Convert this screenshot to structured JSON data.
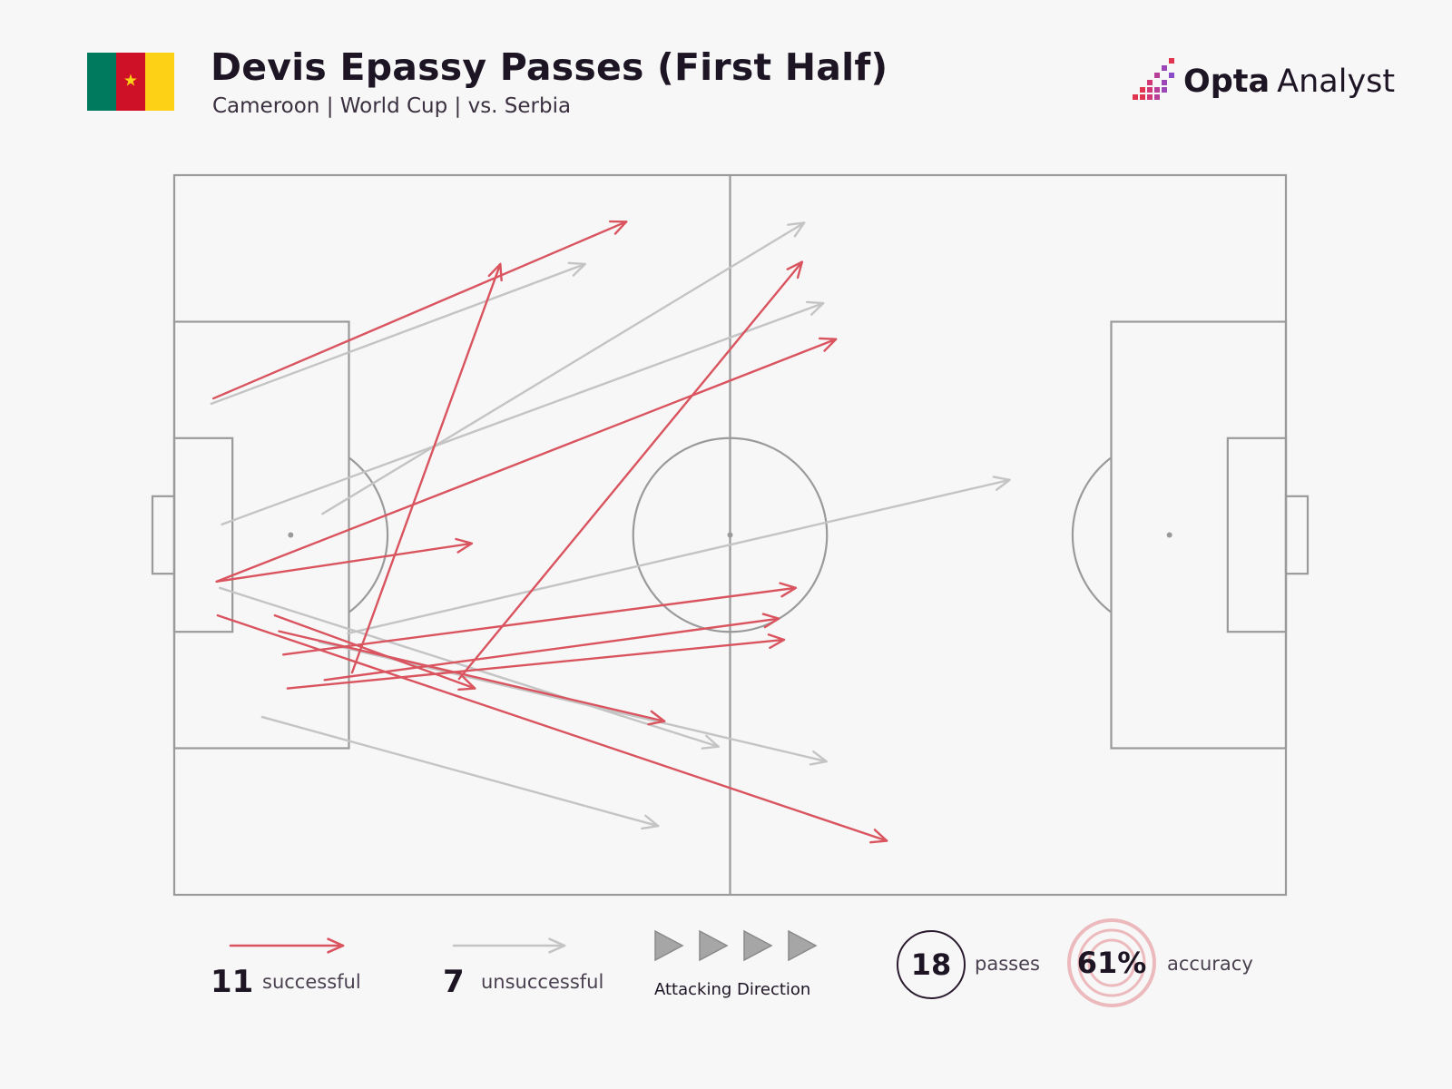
{
  "header": {
    "title": "Devis Epassy Passes (First Half)",
    "subtitle": "Cameroon | World Cup | vs. Serbia",
    "brand_bold": "Opta",
    "brand_light": "Analyst"
  },
  "flag": {
    "colors": [
      "#007a5e",
      "#ce1126",
      "#fcd116"
    ],
    "star_color": "#fcd116",
    "star_glyph": "★"
  },
  "colors": {
    "successful": "#d9545e",
    "unsuccessful": "#c4c4c4",
    "pitch_lines": "#9a9a9a",
    "accent": "#e8a5aa"
  },
  "legend": {
    "successful_count": "11",
    "successful_label": "successful",
    "unsuccessful_count": "7",
    "unsuccessful_label": "unsuccessful",
    "direction_label": "Attacking Direction",
    "passes_value": "18",
    "passes_label": "passes",
    "accuracy_value": "61%",
    "accuracy_label": "accuracy"
  },
  "chart_data": {
    "type": "pass_map",
    "pitch": {
      "length": 105,
      "width": 68
    },
    "attacking_direction": "left-to-right",
    "passes": [
      {
        "outcome": "successful",
        "start": [
          3.7,
          46.9
        ],
        "end": [
          42.7,
          63.6
        ]
      },
      {
        "outcome": "successful",
        "start": [
          16.8,
          21.0
        ],
        "end": [
          30.8,
          59.6
        ]
      },
      {
        "outcome": "successful",
        "start": [
          4.0,
          29.6
        ],
        "end": [
          62.5,
          52.5
        ]
      },
      {
        "outcome": "successful",
        "start": [
          4.0,
          29.6
        ],
        "end": [
          28.1,
          33.2
        ]
      },
      {
        "outcome": "successful",
        "start": [
          26.9,
          20.4
        ],
        "end": [
          59.3,
          59.8
        ]
      },
      {
        "outcome": "successful",
        "start": [
          10.3,
          22.7
        ],
        "end": [
          58.7,
          29.0
        ]
      },
      {
        "outcome": "successful",
        "start": [
          14.2,
          20.3
        ],
        "end": [
          57.1,
          26.1
        ]
      },
      {
        "outcome": "successful",
        "start": [
          10.7,
          19.5
        ],
        "end": [
          57.6,
          24.1
        ]
      },
      {
        "outcome": "successful",
        "start": [
          9.5,
          26.4
        ],
        "end": [
          28.4,
          19.5
        ]
      },
      {
        "outcome": "successful",
        "start": [
          4.1,
          26.4
        ],
        "end": [
          67.3,
          5.1
        ]
      },
      {
        "outcome": "successful",
        "start": [
          9.9,
          24.9
        ],
        "end": [
          46.3,
          16.4
        ]
      },
      {
        "outcome": "unsuccessful",
        "start": [
          3.5,
          46.4
        ],
        "end": [
          38.8,
          59.6
        ]
      },
      {
        "outcome": "unsuccessful",
        "start": [
          14.0,
          36.0
        ],
        "end": [
          59.5,
          63.5
        ]
      },
      {
        "outcome": "unsuccessful",
        "start": [
          4.5,
          35.0
        ],
        "end": [
          61.3,
          55.9
        ]
      },
      {
        "outcome": "unsuccessful",
        "start": [
          16.4,
          24.7
        ],
        "end": [
          78.9,
          39.2
        ]
      },
      {
        "outcome": "unsuccessful",
        "start": [
          13.7,
          23.9
        ],
        "end": [
          61.6,
          12.6
        ]
      },
      {
        "outcome": "unsuccessful",
        "start": [
          8.3,
          16.8
        ],
        "end": [
          45.7,
          6.5
        ]
      },
      {
        "outcome": "unsuccessful",
        "start": [
          4.3,
          29.0
        ],
        "end": [
          51.4,
          14.0
        ]
      }
    ]
  }
}
